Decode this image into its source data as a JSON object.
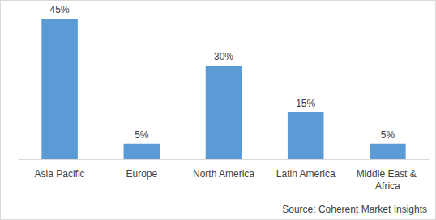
{
  "chart_data": {
    "type": "bar",
    "categories": [
      "Asia Pacific",
      "Europe",
      "North America",
      "Latin America",
      "Middle East & Africa"
    ],
    "values": [
      45,
      5,
      30,
      15,
      5
    ],
    "value_labels": [
      "45%",
      "5%",
      "30%",
      "15%",
      "5%"
    ],
    "color": "#5b9bd5",
    "ylim": [
      0,
      45
    ],
    "grid": false,
    "data_labels": true,
    "tick_labels": "x",
    "annotations": [
      "Source: Coherent Market Insights"
    ]
  }
}
